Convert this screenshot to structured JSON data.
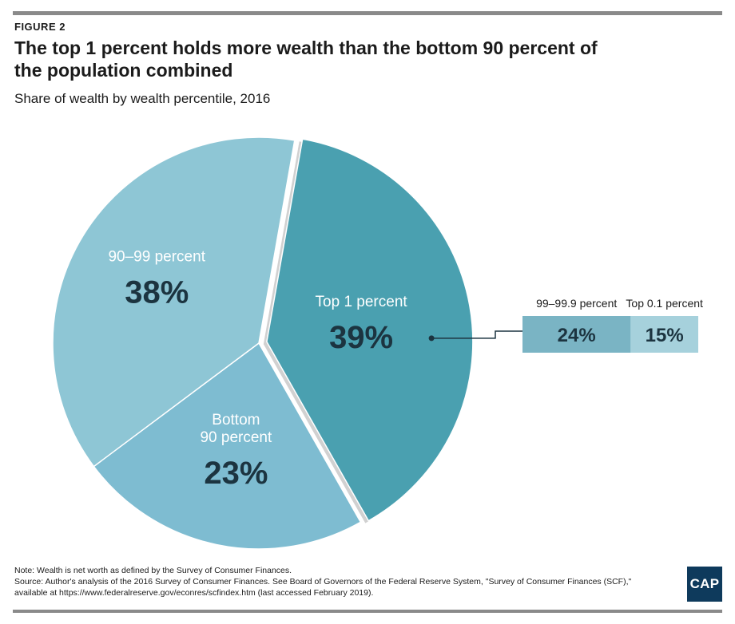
{
  "header": {
    "figure_label": "FIGURE 2",
    "title": "The top 1 percent holds more wealth than the bottom 90 percent of the population combined",
    "subtitle": "Share of wealth by wealth percentile, 2016"
  },
  "chart_data": {
    "type": "pie",
    "slices": [
      {
        "label": "Top 1 percent",
        "value": 39,
        "display": "39%",
        "color": "#4aa0b0"
      },
      {
        "label": "Bottom 90 percent",
        "value": 23,
        "display": "23%",
        "color": "#7ebcd1"
      },
      {
        "label": "90–99 percent",
        "value": 38,
        "display": "38%",
        "color": "#8ec6d5"
      }
    ],
    "breakdown": {
      "parent": "Top 1 percent",
      "segments": [
        {
          "label": "99–99.9 percent",
          "value": 24,
          "display": "24%",
          "color": "#7ab4c4"
        },
        {
          "label": "Top 0.1 percent",
          "value": 15,
          "display": "15%",
          "color": "#a6d1dc"
        }
      ]
    },
    "label_color": "#1c3440",
    "inner_label_color": "#ffffff"
  },
  "footer": {
    "note": "Note: Wealth is net worth as defined by the Survey of Consumer Finances.",
    "source": "Source: Author's analysis of the 2016 Survey of Consumer Finances. See Board of Governors of the Federal Reserve System, \"Survey of Consumer Finances (SCF),\" available at https://www.federalreserve.gov/econres/scfindex.htm (last accessed February 2019).",
    "logo": "CAP"
  }
}
